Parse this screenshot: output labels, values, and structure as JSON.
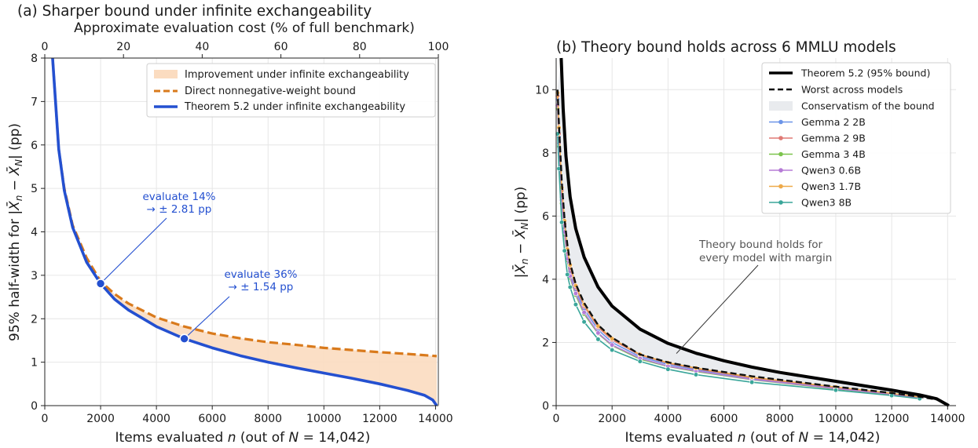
{
  "chart_data": [
    {
      "type": "line",
      "title": "(a) Sharper bound under infinite exchangeability",
      "xlabel": "Items evaluated n (out of N = 14,042)",
      "ylabel": "95% half-width for |X̄n − X̄N| (pp)",
      "top_xlabel": "Approximate evaluation cost (% of full benchmark)",
      "xlim": [
        0,
        14100
      ],
      "ylim": [
        0,
        8
      ],
      "x_ticks": [
        "0",
        "2000",
        "4000",
        "6000",
        "8000",
        "10000",
        "12000",
        "14000"
      ],
      "y_ticks": [
        "0",
        "1",
        "2",
        "3",
        "4",
        "5",
        "6",
        "7",
        "8"
      ],
      "top_ticks": [
        "0",
        "20",
        "40",
        "60",
        "80",
        "100"
      ],
      "grid": true,
      "legend_position": "top-right",
      "legend": [
        "Improvement under infinite exchangeability",
        "Direct nonnegative-weight bound",
        "Theorem 5.2 under infinite exchangeability"
      ],
      "series": [
        {
          "name": "Direct nonnegative-weight bound",
          "color": "#d97a1c",
          "style": "dashed",
          "x": [
            280,
            500,
            700,
            1000,
            1500,
            2000,
            2500,
            3000,
            4000,
            5000,
            6000,
            7000,
            8000,
            9000,
            10000,
            11000,
            12000,
            13000,
            14042
          ],
          "y": [
            8.0,
            5.9,
            5.0,
            4.15,
            3.4,
            2.86,
            2.57,
            2.35,
            2.03,
            1.82,
            1.66,
            1.55,
            1.46,
            1.4,
            1.33,
            1.28,
            1.23,
            1.19,
            1.14
          ]
        },
        {
          "name": "Theorem 5.2 under infinite exchangeability",
          "color": "#2450d0",
          "style": "solid",
          "x": [
            280,
            500,
            700,
            1000,
            1500,
            2000,
            2500,
            3000,
            4000,
            5000,
            6000,
            7000,
            8000,
            9000,
            10000,
            11000,
            12000,
            13000,
            13600,
            13900,
            14042
          ],
          "y": [
            8.0,
            5.9,
            4.95,
            4.1,
            3.3,
            2.81,
            2.45,
            2.2,
            1.82,
            1.54,
            1.33,
            1.15,
            1.0,
            0.87,
            0.75,
            0.63,
            0.5,
            0.35,
            0.24,
            0.13,
            0.0
          ]
        }
      ],
      "markers": [
        {
          "x": 2000,
          "y": 2.81,
          "text": [
            "evaluate 14%",
            "→ ± 2.81 pp"
          ]
        },
        {
          "x": 5000,
          "y": 1.54,
          "text": [
            "evaluate 36%",
            "→ ± 1.54 pp"
          ]
        }
      ]
    },
    {
      "type": "line",
      "title": "(b) Theory bound holds across 6 MMLU models",
      "xlabel": "Items evaluated n (out of N = 14,042)",
      "ylabel": "|X̄n − X̄N| (pp)",
      "xlim": [
        0,
        14300
      ],
      "ylim": [
        0,
        11
      ],
      "x_ticks": [
        "0",
        "2000",
        "4000",
        "6000",
        "8000",
        "10000",
        "12000",
        "14000"
      ],
      "y_ticks": [
        "0",
        "2",
        "4",
        "6",
        "8",
        "10"
      ],
      "grid": true,
      "legend_position": "top-right",
      "legend": [
        "Theorem 5.2 (95% bound)",
        "Worst across models",
        "Conservatism of the bound",
        "Gemma 2 2B",
        "Gemma 2 9B",
        "Gemma 3 4B",
        "Qwen3 0.6B",
        "Qwen3 1.7B",
        "Qwen3 8B"
      ],
      "annotation": {
        "text": [
          "Theory bound holds for",
          "every model with margin"
        ],
        "x": 4300,
        "y": 1.65
      },
      "bound": {
        "name": "Theorem 5.2 (95% bound)",
        "x": [
          180,
          250,
          350,
          500,
          700,
          1000,
          1500,
          2000,
          3000,
          4000,
          5000,
          6000,
          7000,
          8000,
          9000,
          10000,
          11000,
          12000,
          13000,
          13600,
          14042
        ],
        "y": [
          11.0,
          9.4,
          7.9,
          6.6,
          5.6,
          4.7,
          3.75,
          3.15,
          2.42,
          1.97,
          1.66,
          1.42,
          1.22,
          1.05,
          0.91,
          0.77,
          0.63,
          0.49,
          0.34,
          0.22,
          0.0
        ]
      },
      "worst": {
        "name": "Worst across models",
        "x": [
          50,
          100,
          200,
          300,
          400,
          500,
          700,
          1000,
          1500,
          2000,
          3000,
          4000,
          5000,
          7000,
          10000,
          12000,
          13000,
          13700
        ],
        "y": [
          10.0,
          8.9,
          7.1,
          5.9,
          5.1,
          4.5,
          3.85,
          3.25,
          2.55,
          2.15,
          1.62,
          1.37,
          1.2,
          0.93,
          0.6,
          0.4,
          0.28,
          0.18
        ]
      },
      "models": {
        "x": [
          50,
          100,
          200,
          300,
          400,
          500,
          700,
          1000,
          1500,
          2000,
          3000,
          4000,
          5000,
          7000,
          10000,
          12000,
          13000
        ],
        "series": [
          {
            "name": "Gemma 2 2B",
            "color": "#6b94e8",
            "y": [
              9.7,
              8.5,
              6.6,
              5.6,
              4.7,
              4.25,
              3.65,
              3.05,
              2.4,
              2.0,
              1.55,
              1.3,
              1.14,
              0.86,
              0.56,
              0.37,
              0.26
            ]
          },
          {
            "name": "Gemma 2 9B",
            "color": "#e07a75",
            "y": [
              9.8,
              8.6,
              6.8,
              5.75,
              4.85,
              4.35,
              3.75,
              3.15,
              2.48,
              2.08,
              1.6,
              1.34,
              1.17,
              0.88,
              0.58,
              0.38,
              0.27
            ]
          },
          {
            "name": "Gemma 3 4B",
            "color": "#7cc44d",
            "y": [
              9.4,
              8.2,
              6.4,
              5.4,
              4.6,
              4.05,
              3.5,
              2.9,
              2.28,
              1.9,
              1.47,
              1.24,
              1.08,
              0.82,
              0.53,
              0.35,
              0.24
            ]
          },
          {
            "name": "Qwen3 0.6B",
            "color": "#b57bd6",
            "y": [
              9.5,
              8.3,
              6.5,
              5.5,
              4.65,
              4.1,
              3.55,
              2.95,
              2.3,
              1.92,
              1.5,
              1.25,
              1.1,
              0.83,
              0.54,
              0.36,
              0.25
            ]
          },
          {
            "name": "Qwen3 1.7B",
            "color": "#eeaa4a",
            "y": [
              9.9,
              8.8,
              6.9,
              5.85,
              4.95,
              4.45,
              3.8,
              3.2,
              2.52,
              2.12,
              1.62,
              1.36,
              1.19,
              0.9,
              0.59,
              0.39,
              0.27
            ]
          },
          {
            "name": "Qwen3 8B",
            "color": "#3aa69a",
            "y": [
              8.6,
              7.5,
              5.8,
              4.9,
              4.15,
              3.75,
              3.2,
              2.65,
              2.1,
              1.76,
              1.4,
              1.15,
              0.98,
              0.74,
              0.49,
              0.32,
              0.22
            ]
          }
        ]
      }
    }
  ]
}
